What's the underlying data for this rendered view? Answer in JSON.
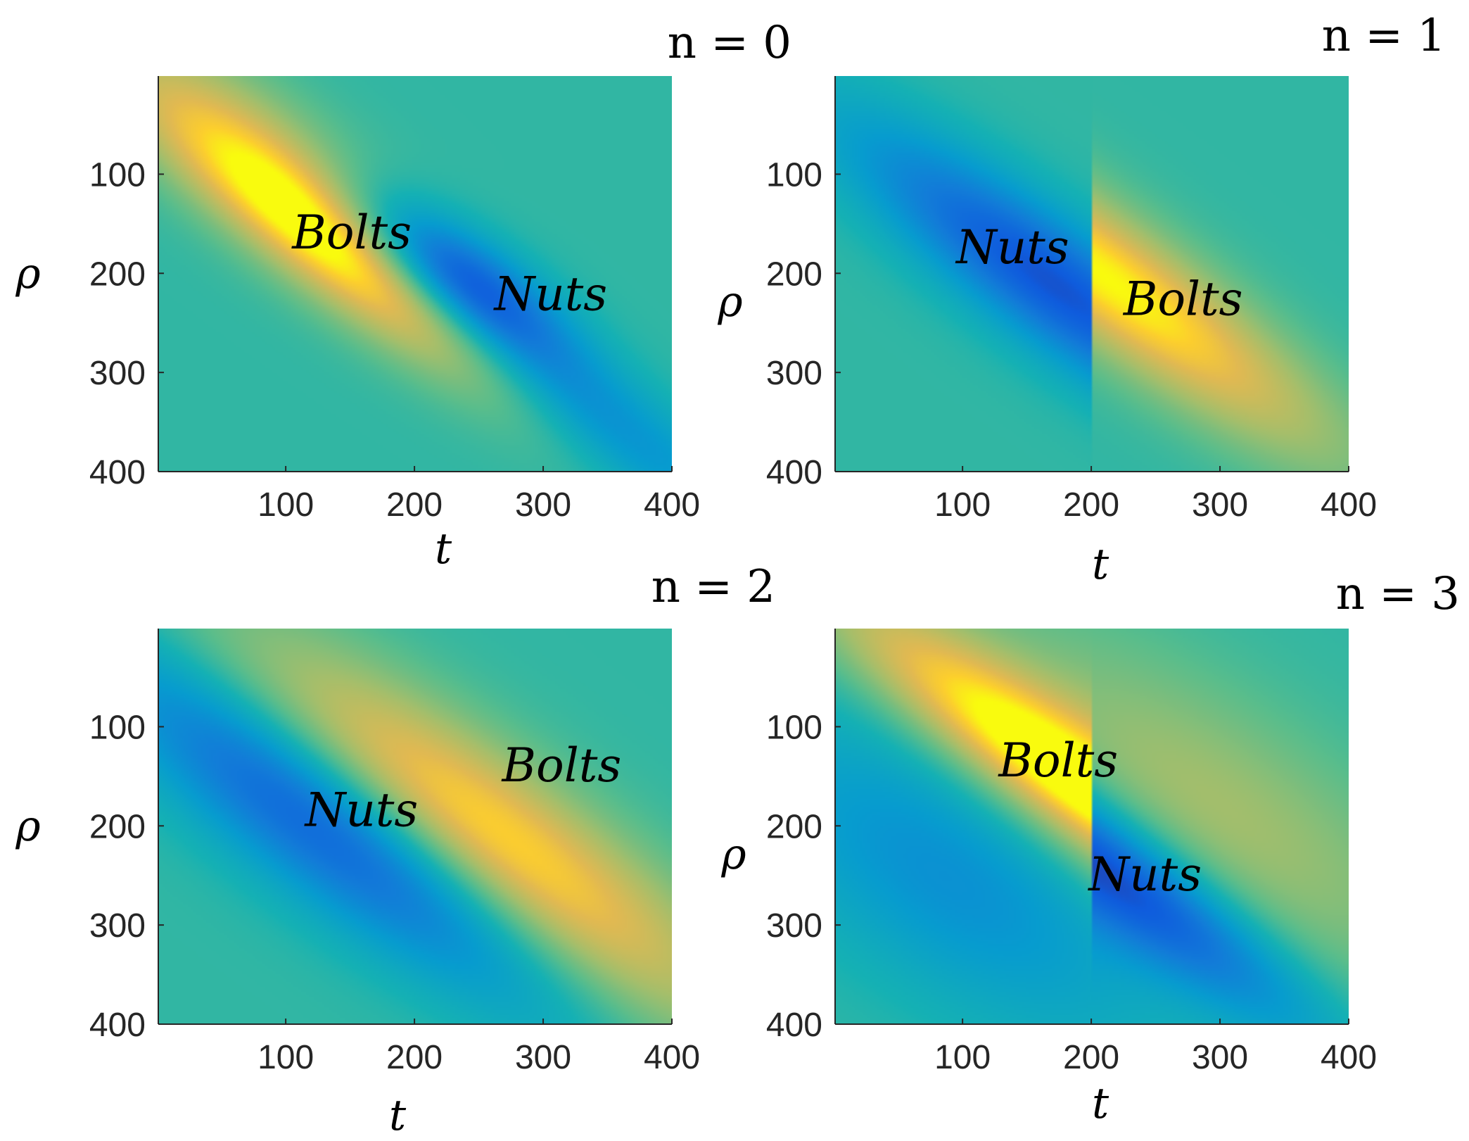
{
  "chart_data": [
    {
      "type": "heatmap",
      "title": "n = 0",
      "xlabel": "t",
      "ylabel": "ρ",
      "xlim": [
        1,
        400
      ],
      "ylim": [
        1,
        400
      ],
      "y_reversed": true,
      "xticks": [
        100,
        200,
        300,
        400
      ],
      "yticks": [
        100,
        200,
        300,
        400
      ],
      "split_t": null,
      "blobs": [
        {
          "t": 155,
          "rho": 190,
          "amp": 1.0,
          "along": 130,
          "across": 32
        },
        {
          "t": 235,
          "rho": 205,
          "amp": -1.0,
          "along": 75,
          "across": 28
        },
        {
          "t": 330,
          "rho": 330,
          "amp": -0.55,
          "along": 140,
          "across": 30
        },
        {
          "t": 60,
          "rho": 60,
          "amp": 0.55,
          "along": 120,
          "across": 40
        }
      ],
      "annotations": [
        {
          "text": "Bolts",
          "t": 105,
          "rho": 175
        },
        {
          "text": "Nuts",
          "t": 262,
          "rho": 237
        }
      ]
    },
    {
      "type": "heatmap",
      "title": "n = 1",
      "xlabel": "t",
      "ylabel": "ρ",
      "xlim": [
        1,
        400
      ],
      "ylim": [
        1,
        400
      ],
      "y_reversed": true,
      "xticks": [
        100,
        200,
        300,
        400
      ],
      "yticks": [
        100,
        200,
        300,
        400
      ],
      "split_t": 200,
      "blobs": [
        {
          "t": 170,
          "rho": 210,
          "amp": -1.0,
          "along": 150,
          "across": 38
        },
        {
          "t": 212,
          "rho": 205,
          "amp": 1.0,
          "along": 170,
          "across": 40
        }
      ],
      "annotations": [
        {
          "text": "Nuts",
          "t": 95,
          "rho": 190
        },
        {
          "text": "Bolts",
          "t": 225,
          "rho": 242
        }
      ]
    },
    {
      "type": "heatmap",
      "title": "n = 2",
      "xlabel": "t",
      "ylabel": "ρ",
      "xlim": [
        1,
        400
      ],
      "ylim": [
        1,
        400
      ],
      "y_reversed": true,
      "xticks": [
        100,
        200,
        300,
        400
      ],
      "yticks": [
        100,
        200,
        300,
        400
      ],
      "split_t": null,
      "blobs": [
        {
          "t": 135,
          "rho": 200,
          "amp": -1.0,
          "along": 170,
          "across": 45
        },
        {
          "t": 255,
          "rho": 210,
          "amp": 1.0,
          "along": 190,
          "across": 50
        }
      ],
      "annotations": [
        {
          "text": "Nuts",
          "t": 115,
          "rho": 200
        },
        {
          "text": "Bolts",
          "t": 268,
          "rho": 155
        }
      ]
    },
    {
      "type": "heatmap",
      "title": "n = 3",
      "xlabel": "t",
      "ylabel": "ρ",
      "xlim": [
        1,
        400
      ],
      "ylim": [
        1,
        400
      ],
      "y_reversed": true,
      "xticks": [
        100,
        200,
        300,
        400
      ],
      "yticks": [
        100,
        200,
        300,
        400
      ],
      "split_t": 200,
      "blobs": [
        {
          "t": 170,
          "rho": 140,
          "amp": 1.0,
          "along": 170,
          "across": 35
        },
        {
          "t": 215,
          "rho": 245,
          "amp": -1.0,
          "along": 150,
          "across": 33
        },
        {
          "t": 90,
          "rho": 250,
          "amp": -0.5,
          "along": 150,
          "across": 70
        },
        {
          "t": 290,
          "rho": 180,
          "amp": 0.45,
          "along": 180,
          "across": 70
        }
      ],
      "annotations": [
        {
          "text": "Bolts",
          "t": 128,
          "rho": 150
        },
        {
          "text": "Nuts",
          "t": 198,
          "rho": 265
        }
      ]
    }
  ]
}
